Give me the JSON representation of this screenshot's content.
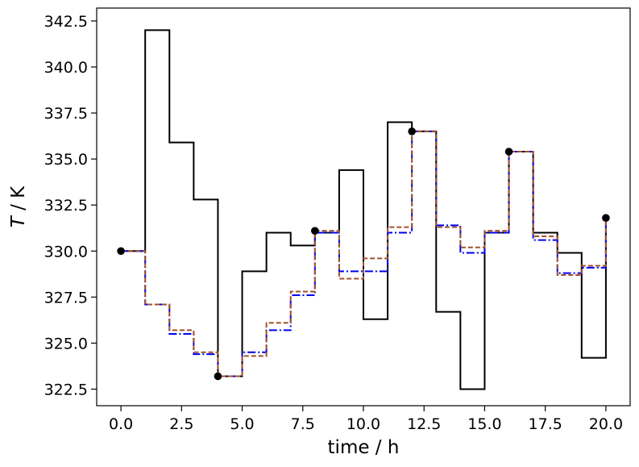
{
  "chart_data": {
    "type": "line",
    "xlabel": "time / h",
    "ylabel_var": "T",
    "ylabel_unit": " / K",
    "xlim": [
      -1.0,
      21.0
    ],
    "ylim": [
      321.6,
      343.2
    ],
    "xticks": [
      0.0,
      2.5,
      5.0,
      7.5,
      10.0,
      12.5,
      15.0,
      17.5,
      20.0
    ],
    "xtick_labels": [
      "0.0",
      "2.5",
      "5.0",
      "7.5",
      "10.0",
      "12.5",
      "15.0",
      "17.5",
      "20.0"
    ],
    "yticks": [
      322.5,
      325.0,
      327.5,
      330.0,
      332.5,
      335.0,
      337.5,
      340.0,
      342.5
    ],
    "ytick_labels": [
      "322.5",
      "325.0",
      "327.5",
      "330.0",
      "332.5",
      "335.0",
      "337.5",
      "340.0",
      "342.5"
    ],
    "grid": false,
    "series": [
      {
        "style": "solid",
        "color": "#000000",
        "x": [
          0,
          1,
          2,
          3,
          4,
          5,
          6,
          7,
          8,
          9,
          10,
          11,
          12,
          13,
          14,
          15,
          16,
          17,
          18,
          19,
          20
        ],
        "y": [
          330.0,
          342.0,
          335.9,
          332.8,
          323.2,
          328.9,
          331.0,
          330.3,
          331.0,
          334.4,
          326.3,
          337.0,
          336.5,
          326.7,
          322.5,
          331.0,
          335.4,
          331.0,
          329.9,
          324.2,
          331.8
        ]
      },
      {
        "style": "dashdot",
        "color": "#0000ee",
        "x": [
          0,
          1,
          2,
          3,
          4,
          5,
          6,
          7,
          8,
          9,
          10,
          11,
          12,
          13,
          14,
          15,
          16,
          17,
          18,
          19,
          20
        ],
        "y": [
          330.0,
          327.1,
          325.5,
          324.4,
          323.2,
          324.5,
          325.7,
          327.6,
          331.0,
          328.9,
          328.9,
          331.0,
          336.5,
          331.4,
          329.9,
          331.0,
          335.4,
          330.6,
          328.8,
          329.1,
          331.8
        ]
      },
      {
        "style": "dashed",
        "color": "#a0522d",
        "x": [
          0,
          1,
          2,
          3,
          4,
          5,
          6,
          7,
          8,
          9,
          10,
          11,
          12,
          13,
          14,
          15,
          16,
          17,
          18,
          19,
          20
        ],
        "y": [
          330.0,
          327.1,
          325.7,
          324.5,
          323.2,
          324.3,
          326.1,
          327.8,
          331.1,
          328.5,
          329.6,
          331.3,
          336.5,
          331.3,
          330.2,
          331.1,
          335.4,
          330.8,
          328.7,
          329.2,
          331.8
        ]
      }
    ],
    "points": {
      "color": "#000000",
      "x": [
        0,
        4,
        8,
        12,
        16,
        20
      ],
      "y": [
        330.0,
        323.2,
        331.1,
        336.5,
        335.4,
        331.8
      ]
    }
  }
}
